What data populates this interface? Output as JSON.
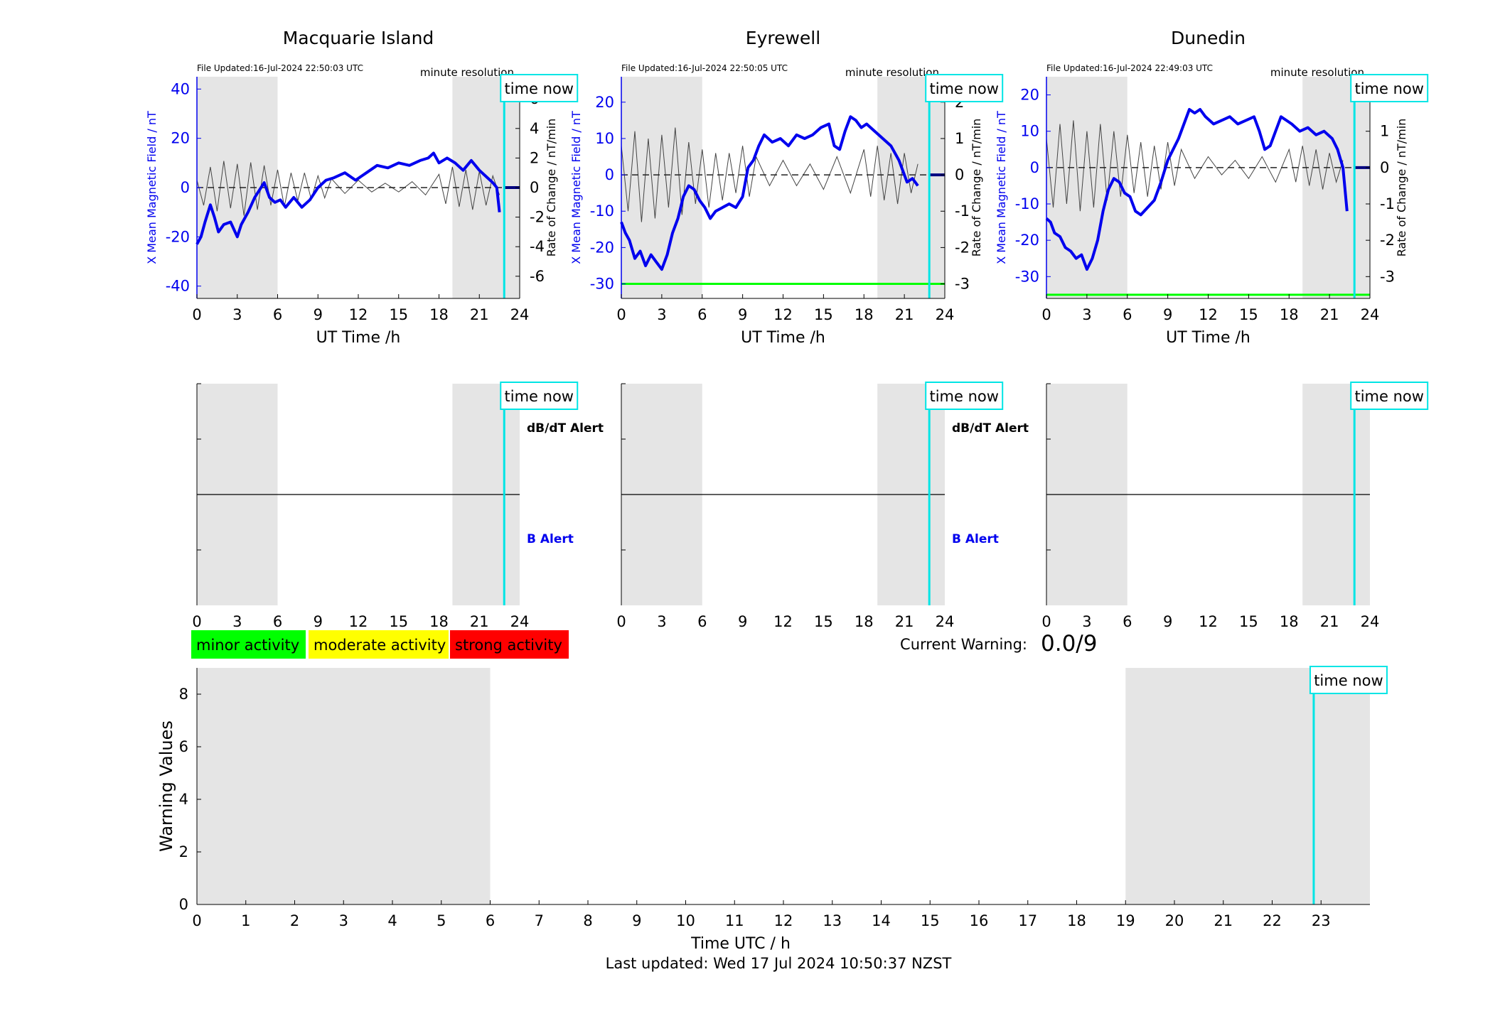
{
  "figure": {
    "current_warning_label": "Current Warning:",
    "current_warning_value": "0.0/9",
    "last_updated": "Last updated: Wed 17 Jul 2024 10:50:37 NZST",
    "time_now_label": "time now",
    "minute_resolution_label": "minute resolution",
    "dbdt_alert_label": "dB/dT Alert",
    "b_alert_label": "B Alert",
    "legend": [
      {
        "label": "minor activity",
        "color": "#00ff00"
      },
      {
        "label": "moderate activity",
        "color": "#ffff00"
      },
      {
        "label": "strong activity",
        "color": "#ff0000"
      }
    ]
  },
  "colors": {
    "field_line": "#0000ee",
    "night_shade": "#e5e5e5",
    "time_now": "#00e5e5",
    "threshold_line": "#00ff00",
    "dbdt_trace": "#444444"
  },
  "chart_data": [
    {
      "type": "line",
      "title": "Macquarie Island",
      "file_updated": "File Updated:16-Jul-2024 22:50:03 UTC",
      "xlabel": "UT Time /h",
      "ylabel": "X Mean Magnetic Field / nT",
      "ylabel_right": "Rate of Change / nT/min",
      "xlim": [
        0,
        24
      ],
      "ylim": [
        -45,
        45
      ],
      "ylim_right": [
        -7.5,
        7.5
      ],
      "xticks": [
        0,
        3,
        6,
        9,
        12,
        15,
        18,
        21,
        24
      ],
      "yticks": [
        -40,
        -20,
        0,
        20,
        40
      ],
      "yticks_right": [
        -6,
        -4,
        -2,
        0,
        2,
        4,
        6
      ],
      "night_bands": [
        [
          0,
          6
        ],
        [
          19,
          24
        ]
      ],
      "time_now": 22.85,
      "series": [
        {
          "role": "field_nT",
          "x": [
            0,
            0.3,
            0.6,
            1.0,
            1.3,
            1.6,
            2.0,
            2.5,
            3.0,
            3.3,
            3.8,
            4.3,
            5.0,
            5.4,
            5.8,
            6.2,
            6.6,
            7.2,
            7.8,
            8.4,
            9.0,
            9.6,
            10.2,
            11.0,
            11.8,
            12.6,
            13.4,
            14.2,
            15.0,
            15.8,
            16.6,
            17.2,
            17.6,
            18.0,
            18.6,
            19.2,
            19.8,
            20.4,
            21.0,
            21.6,
            22.0,
            22.3,
            22.5
          ],
          "y": [
            -23,
            -20,
            -14,
            -7,
            -12,
            -18,
            -15,
            -14,
            -20,
            -15,
            -10,
            -4,
            2,
            -4,
            -6,
            -5,
            -8,
            -4,
            -8,
            -5,
            0,
            3,
            4,
            6,
            3,
            6,
            9,
            8,
            10,
            9,
            11,
            12,
            14,
            10,
            12,
            10,
            7,
            11,
            7,
            4,
            2,
            0,
            -10
          ]
        },
        {
          "role": "dbdt_nT_per_min",
          "x": [
            0,
            0.5,
            1.0,
            1.5,
            2.0,
            2.5,
            3.0,
            3.5,
            4.0,
            4.5,
            5.0,
            5.5,
            6.0,
            6.5,
            7.0,
            7.5,
            8.0,
            8.5,
            9.0,
            9.5,
            10.0,
            11.0,
            12.0,
            13.0,
            14.0,
            15.0,
            16.0,
            17.0,
            18.0,
            18.5,
            19.0,
            19.5,
            20.0,
            20.5,
            21.0,
            21.5,
            22.0,
            22.5
          ],
          "y": [
            0.5,
            -1.2,
            1.4,
            -1.6,
            1.8,
            -1.4,
            1.6,
            -1.9,
            1.7,
            -1.5,
            1.5,
            -1.2,
            1.2,
            -1.3,
            1.0,
            -0.9,
            1.0,
            -0.8,
            0.8,
            -0.7,
            0.6,
            -0.4,
            0.5,
            -0.3,
            0.3,
            -0.3,
            0.4,
            -0.5,
            0.9,
            -1.1,
            1.4,
            -1.3,
            1.2,
            -1.5,
            1.1,
            -1.2,
            0.8,
            -0.5
          ]
        }
      ]
    },
    {
      "type": "line",
      "title": "Eyrewell",
      "file_updated": "File Updated:16-Jul-2024 22:50:05 UTC",
      "xlabel": "UT Time /h",
      "ylabel": "X Mean Magnetic Field / nT",
      "ylabel_right": "Rate of Change / nT/min",
      "xlim": [
        0,
        24
      ],
      "ylim": [
        -34,
        27
      ],
      "ylim_right": [
        -3.4,
        2.7
      ],
      "xticks": [
        0,
        3,
        6,
        9,
        12,
        15,
        18,
        21,
        24
      ],
      "yticks": [
        -30,
        -20,
        -10,
        0,
        10,
        20
      ],
      "yticks_right": [
        -3,
        -2,
        -1,
        0,
        1,
        2
      ],
      "night_bands": [
        [
          0,
          6
        ],
        [
          19,
          24
        ]
      ],
      "time_now": 22.85,
      "threshold_nT": -30,
      "series": [
        {
          "role": "field_nT",
          "x": [
            0,
            0.3,
            0.6,
            1.0,
            1.4,
            1.8,
            2.2,
            2.6,
            3.0,
            3.4,
            3.8,
            4.2,
            4.6,
            5.0,
            5.4,
            5.8,
            6.2,
            6.6,
            7.0,
            7.5,
            8.0,
            8.5,
            9.0,
            9.4,
            9.8,
            10.2,
            10.6,
            11.2,
            11.8,
            12.4,
            13.0,
            13.6,
            14.2,
            14.8,
            15.4,
            15.8,
            16.2,
            16.6,
            17.0,
            17.4,
            17.8,
            18.2,
            18.8,
            19.4,
            20.0,
            20.6,
            21.2,
            21.6,
            22.0
          ],
          "y": [
            -13,
            -16,
            -18,
            -23,
            -21,
            -25,
            -22,
            -24,
            -26,
            -22,
            -16,
            -12,
            -6,
            -3,
            -4,
            -7,
            -9,
            -12,
            -10,
            -9,
            -8,
            -9,
            -6,
            2,
            4,
            8,
            11,
            9,
            10,
            8,
            11,
            10,
            11,
            13,
            14,
            8,
            7,
            12,
            16,
            15,
            13,
            14,
            12,
            10,
            8,
            4,
            -2,
            -1,
            -3
          ]
        },
        {
          "role": "dbdt_nT_per_min",
          "x": [
            0,
            0.5,
            1.0,
            1.5,
            2.0,
            2.5,
            3.0,
            3.5,
            4.0,
            4.5,
            5.0,
            5.5,
            6.0,
            6.5,
            7.0,
            7.5,
            8.0,
            8.5,
            9.0,
            9.5,
            10.0,
            11.0,
            12.0,
            13.0,
            14.0,
            15.0,
            16.0,
            17.0,
            18.0,
            18.5,
            19.0,
            19.5,
            20.0,
            20.5,
            21.0,
            21.5,
            22.0
          ],
          "y": [
            0.8,
            -1.0,
            1.2,
            -1.3,
            1.0,
            -1.2,
            1.1,
            -0.9,
            1.3,
            -1.1,
            0.9,
            -0.8,
            0.7,
            -0.9,
            0.6,
            -0.7,
            0.6,
            -0.5,
            0.8,
            -0.6,
            0.5,
            -0.3,
            0.4,
            -0.3,
            0.3,
            -0.4,
            0.5,
            -0.5,
            0.7,
            -0.6,
            0.8,
            -0.7,
            0.6,
            -0.8,
            0.6,
            -0.5,
            0.3
          ]
        }
      ]
    },
    {
      "type": "line",
      "title": "Dunedin",
      "file_updated": "File Updated:16-Jul-2024 22:49:03 UTC",
      "xlabel": "UT Time /h",
      "ylabel": "X Mean Magnetic Field / nT",
      "ylabel_right": "Rate of Change / nT/min",
      "xlim": [
        0,
        24
      ],
      "ylim": [
        -36,
        25
      ],
      "ylim_right": [
        -3.6,
        2.5
      ],
      "xticks": [
        0,
        3,
        6,
        9,
        12,
        15,
        18,
        21,
        24
      ],
      "yticks": [
        -30,
        -20,
        -10,
        0,
        10,
        20
      ],
      "yticks_right": [
        -3,
        -2,
        -1,
        0,
        1,
        2
      ],
      "night_bands": [
        [
          0,
          6
        ],
        [
          19,
          24
        ]
      ],
      "time_now": 22.85,
      "threshold_nT": -35,
      "series": [
        {
          "role": "field_nT",
          "x": [
            0,
            0.3,
            0.6,
            1.0,
            1.4,
            1.8,
            2.2,
            2.6,
            3.0,
            3.4,
            3.8,
            4.2,
            4.6,
            5.0,
            5.4,
            5.8,
            6.2,
            6.6,
            7.0,
            7.5,
            8.0,
            8.5,
            9.0,
            9.4,
            9.8,
            10.2,
            10.6,
            11.0,
            11.4,
            11.8,
            12.4,
            13.0,
            13.6,
            14.2,
            14.8,
            15.4,
            15.8,
            16.2,
            16.6,
            17.0,
            17.4,
            17.8,
            18.2,
            18.8,
            19.4,
            20.0,
            20.6,
            21.2,
            21.6,
            22.0,
            22.3
          ],
          "y": [
            -14,
            -15,
            -18,
            -19,
            -22,
            -23,
            -25,
            -24,
            -28,
            -25,
            -20,
            -12,
            -6,
            -3,
            -4,
            -7,
            -8,
            -12,
            -13,
            -11,
            -9,
            -4,
            2,
            5,
            8,
            12,
            16,
            15,
            16,
            14,
            12,
            13,
            14,
            12,
            13,
            14,
            10,
            5,
            6,
            10,
            14,
            13,
            12,
            10,
            11,
            9,
            10,
            8,
            5,
            0,
            -12
          ]
        },
        {
          "role": "dbdt_nT_per_min",
          "x": [
            0,
            0.5,
            1.0,
            1.5,
            2.0,
            2.5,
            3.0,
            3.5,
            4.0,
            4.5,
            5.0,
            5.5,
            6.0,
            6.5,
            7.0,
            7.5,
            8.0,
            8.5,
            9.0,
            9.5,
            10.0,
            11.0,
            12.0,
            13.0,
            14.0,
            15.0,
            16.0,
            17.0,
            18.0,
            18.5,
            19.0,
            19.5,
            20.0,
            20.5,
            21.0,
            21.5,
            22.0
          ],
          "y": [
            0.8,
            -1.1,
            1.2,
            -1.0,
            1.3,
            -1.2,
            1.0,
            -1.1,
            1.2,
            -0.9,
            1.0,
            -0.8,
            0.9,
            -0.7,
            0.7,
            -0.8,
            0.6,
            -0.6,
            0.7,
            -0.5,
            0.5,
            -0.3,
            0.3,
            -0.2,
            0.2,
            -0.3,
            0.3,
            -0.4,
            0.5,
            -0.4,
            0.6,
            -0.5,
            0.5,
            -0.6,
            0.4,
            -0.4,
            0.2
          ]
        }
      ]
    },
    {
      "type": "line",
      "title": "",
      "xlabel": "Time UTC / h",
      "ylabel": "Warning Values",
      "xlim": [
        0,
        24
      ],
      "ylim": [
        0,
        9
      ],
      "xticks": [
        0,
        1,
        2,
        3,
        4,
        5,
        6,
        7,
        8,
        9,
        10,
        11,
        12,
        13,
        14,
        15,
        16,
        17,
        18,
        19,
        20,
        21,
        22,
        23
      ],
      "yticks": [
        0,
        2,
        4,
        6,
        8
      ],
      "night_bands": [
        [
          0,
          6
        ],
        [
          19,
          24
        ]
      ],
      "time_now": 22.85,
      "series": []
    }
  ]
}
